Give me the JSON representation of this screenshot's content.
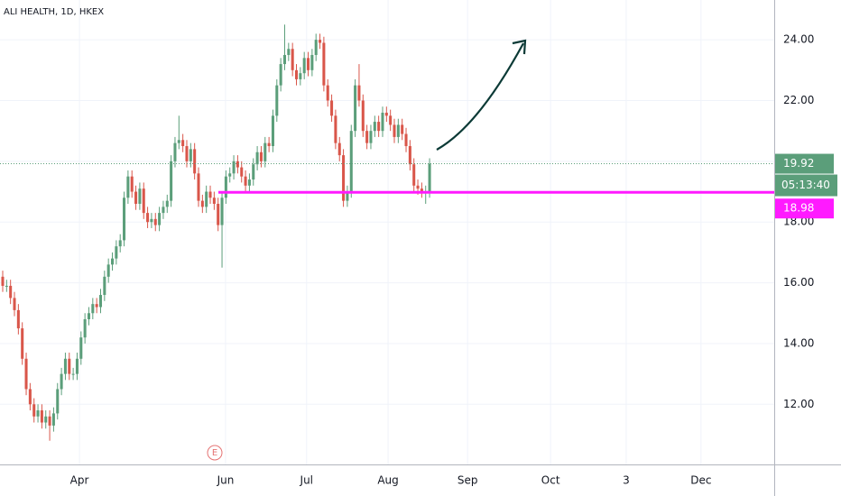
{
  "chart_data": {
    "type": "candlestick",
    "title": "ALI HEALTH, 1D, HKEX",
    "up_color": "#5b9e7a",
    "down_color": "#d9564a",
    "grid": true,
    "xlim": [
      -0.69,
      197.0
    ],
    "ylim": [
      10.02,
      25.31
    ],
    "xticks": [
      {
        "value": 19.6,
        "label": "Apr"
      },
      {
        "value": 56.9,
        "label": "Jun"
      },
      {
        "value": 77.6,
        "label": "Jul"
      },
      {
        "value": 98.4,
        "label": "Aug"
      },
      {
        "value": 118.7,
        "label": "Sep"
      },
      {
        "value": 139.9,
        "label": "Oct"
      },
      {
        "value": 159.2,
        "label": "3"
      },
      {
        "value": 178.3,
        "label": "Dec"
      }
    ],
    "yticks": [
      {
        "value": 12,
        "label": "12.00"
      },
      {
        "value": 14,
        "label": "14.00"
      },
      {
        "value": 16,
        "label": "16.00"
      },
      {
        "value": 18,
        "label": "18.00"
      },
      {
        "value": 20,
        "label": "20.00"
      },
      {
        "value": 22,
        "label": "22.00"
      },
      {
        "value": 24,
        "label": "24.00"
      }
    ],
    "x": [
      0,
      1,
      2,
      3,
      4,
      5,
      6,
      7,
      8,
      9,
      10,
      11,
      12,
      13,
      14,
      15,
      16,
      17,
      18,
      19,
      20,
      21,
      22,
      23,
      24,
      25,
      26,
      27,
      28,
      29,
      30,
      31,
      32,
      33,
      34,
      35,
      36,
      37,
      38,
      39,
      40,
      41,
      42,
      43,
      44,
      45,
      46,
      47,
      48,
      49,
      50,
      51,
      52,
      53,
      54,
      55,
      56,
      57,
      58,
      59,
      60,
      61,
      62,
      63,
      64,
      65,
      66,
      67,
      68,
      69,
      70,
      71,
      72,
      73,
      74,
      75,
      76,
      77,
      78,
      79,
      80,
      81,
      82,
      83,
      84,
      85,
      86,
      87,
      88,
      89,
      90,
      91,
      92,
      93,
      94,
      95,
      96,
      97,
      98,
      99,
      100,
      101,
      102,
      103,
      104,
      105,
      106,
      107,
      108,
      109
    ],
    "open": [
      16.2,
      15.9,
      15.9,
      15.5,
      15.1,
      14.5,
      13.5,
      12.5,
      12.0,
      11.6,
      11.8,
      11.4,
      11.6,
      11.3,
      11.7,
      12.5,
      13.0,
      13.5,
      13.0,
      13.0,
      13.5,
      14.2,
      14.8,
      15.0,
      15.3,
      15.2,
      15.6,
      16.2,
      16.6,
      16.8,
      17.2,
      17.4,
      18.8,
      19.5,
      19.0,
      18.6,
      19.1,
      18.3,
      18.0,
      18.1,
      17.9,
      18.3,
      18.5,
      18.7,
      20.0,
      20.6,
      20.7,
      20.5,
      20.0,
      20.4,
      19.6,
      18.7,
      18.5,
      19.0,
      18.8,
      18.6,
      17.9,
      18.8,
      19.5,
      19.6,
      20.0,
      19.8,
      19.5,
      19.2,
      19.4,
      19.9,
      20.3,
      20.0,
      20.6,
      20.5,
      21.5,
      22.5,
      23.2,
      23.5,
      23.7,
      23.0,
      22.7,
      22.9,
      23.4,
      23.0,
      23.5,
      24.0,
      23.9,
      22.5,
      22.0,
      21.5,
      20.6,
      20.2,
      18.7,
      19.0,
      21.0,
      22.5,
      22.0,
      21.0,
      20.6,
      21.0,
      21.3,
      21.0,
      21.6,
      21.5,
      21.2,
      20.8,
      21.2,
      20.9,
      20.5,
      19.9,
      19.2,
      19.1,
      19.0,
      19.0
    ],
    "high": [
      16.4,
      16.1,
      16.1,
      15.7,
      15.3,
      14.7,
      13.7,
      12.7,
      12.2,
      12.0,
      12.0,
      11.8,
      11.8,
      11.9,
      12.7,
      13.2,
      13.7,
      13.7,
      13.2,
      13.7,
      14.4,
      15.0,
      15.2,
      15.5,
      15.5,
      15.8,
      16.4,
      16.8,
      17.0,
      17.4,
      17.6,
      19.0,
      19.7,
      19.7,
      19.2,
      19.3,
      19.3,
      18.5,
      18.3,
      18.3,
      18.5,
      18.7,
      18.9,
      20.2,
      20.8,
      21.5,
      20.9,
      20.7,
      20.6,
      20.6,
      19.8,
      18.9,
      19.2,
      19.2,
      19.0,
      18.8,
      19.0,
      19.7,
      19.8,
      20.2,
      20.2,
      20.0,
      19.7,
      19.6,
      20.1,
      20.5,
      20.5,
      20.8,
      20.8,
      21.7,
      22.7,
      23.4,
      24.5,
      23.9,
      23.9,
      23.2,
      23.1,
      23.6,
      23.6,
      23.7,
      24.2,
      24.2,
      24.1,
      22.7,
      22.2,
      21.7,
      20.8,
      20.4,
      19.2,
      21.2,
      22.7,
      23.2,
      22.2,
      21.2,
      21.2,
      21.5,
      21.5,
      21.8,
      21.8,
      21.7,
      21.4,
      21.4,
      21.4,
      21.1,
      20.7,
      20.1,
      19.4,
      19.3,
      19.2,
      20.1
    ],
    "low": [
      15.7,
      15.7,
      15.3,
      14.9,
      14.3,
      13.3,
      12.3,
      11.8,
      11.4,
      11.4,
      11.2,
      11.2,
      10.8,
      11.1,
      11.5,
      12.3,
      12.8,
      12.8,
      12.8,
      12.8,
      13.3,
      14.0,
      14.6,
      14.8,
      15.0,
      15.0,
      15.4,
      16.0,
      16.4,
      16.6,
      17.0,
      17.2,
      18.6,
      18.8,
      18.4,
      18.4,
      18.1,
      17.8,
      17.8,
      17.7,
      17.7,
      18.1,
      18.3,
      18.5,
      19.8,
      20.4,
      20.3,
      19.8,
      19.8,
      19.4,
      18.5,
      18.3,
      18.3,
      18.6,
      18.4,
      17.7,
      16.5,
      18.6,
      19.3,
      19.4,
      19.6,
      19.3,
      19.0,
      19.0,
      19.2,
      19.7,
      19.8,
      19.8,
      20.3,
      20.3,
      21.3,
      22.3,
      23.0,
      23.3,
      22.8,
      22.5,
      22.5,
      22.7,
      22.8,
      22.8,
      23.3,
      23.7,
      22.3,
      21.8,
      21.3,
      20.4,
      20.0,
      18.5,
      18.5,
      18.8,
      20.8,
      21.8,
      20.8,
      20.4,
      20.4,
      20.8,
      20.8,
      20.8,
      21.3,
      21.0,
      20.6,
      20.6,
      20.7,
      20.3,
      19.7,
      19.0,
      18.9,
      18.8,
      18.6,
      18.8
    ],
    "close": [
      15.9,
      15.9,
      15.5,
      15.1,
      14.5,
      13.5,
      12.5,
      12.0,
      11.6,
      11.8,
      11.4,
      11.6,
      11.3,
      11.7,
      12.5,
      13.0,
      13.5,
      13.0,
      13.0,
      13.5,
      14.2,
      14.8,
      15.0,
      15.3,
      15.2,
      15.6,
      16.2,
      16.6,
      16.8,
      17.2,
      17.4,
      18.8,
      19.5,
      19.0,
      18.6,
      19.1,
      18.3,
      18.0,
      18.1,
      17.9,
      18.3,
      18.5,
      18.7,
      20.0,
      20.6,
      20.7,
      20.5,
      20.0,
      20.4,
      19.6,
      18.7,
      18.5,
      19.0,
      18.8,
      18.6,
      17.9,
      18.8,
      19.5,
      19.6,
      20.0,
      19.8,
      19.5,
      19.2,
      19.4,
      19.9,
      20.3,
      20.0,
      20.6,
      20.5,
      21.5,
      22.5,
      23.2,
      23.5,
      23.7,
      23.0,
      22.7,
      22.9,
      23.4,
      23.0,
      23.5,
      24.0,
      23.9,
      22.5,
      22.0,
      21.5,
      20.6,
      20.2,
      18.7,
      19.0,
      21.0,
      22.5,
      22.0,
      21.0,
      20.6,
      21.0,
      21.3,
      21.0,
      21.6,
      21.5,
      21.2,
      20.8,
      21.2,
      20.9,
      20.5,
      19.9,
      19.2,
      19.1,
      19.0,
      19.0,
      19.92
    ],
    "last_price": 19.92,
    "countdown": "05:13:40",
    "hline": {
      "value": 18.98,
      "color": "#ff1aff"
    },
    "earnings_marker": "E"
  }
}
